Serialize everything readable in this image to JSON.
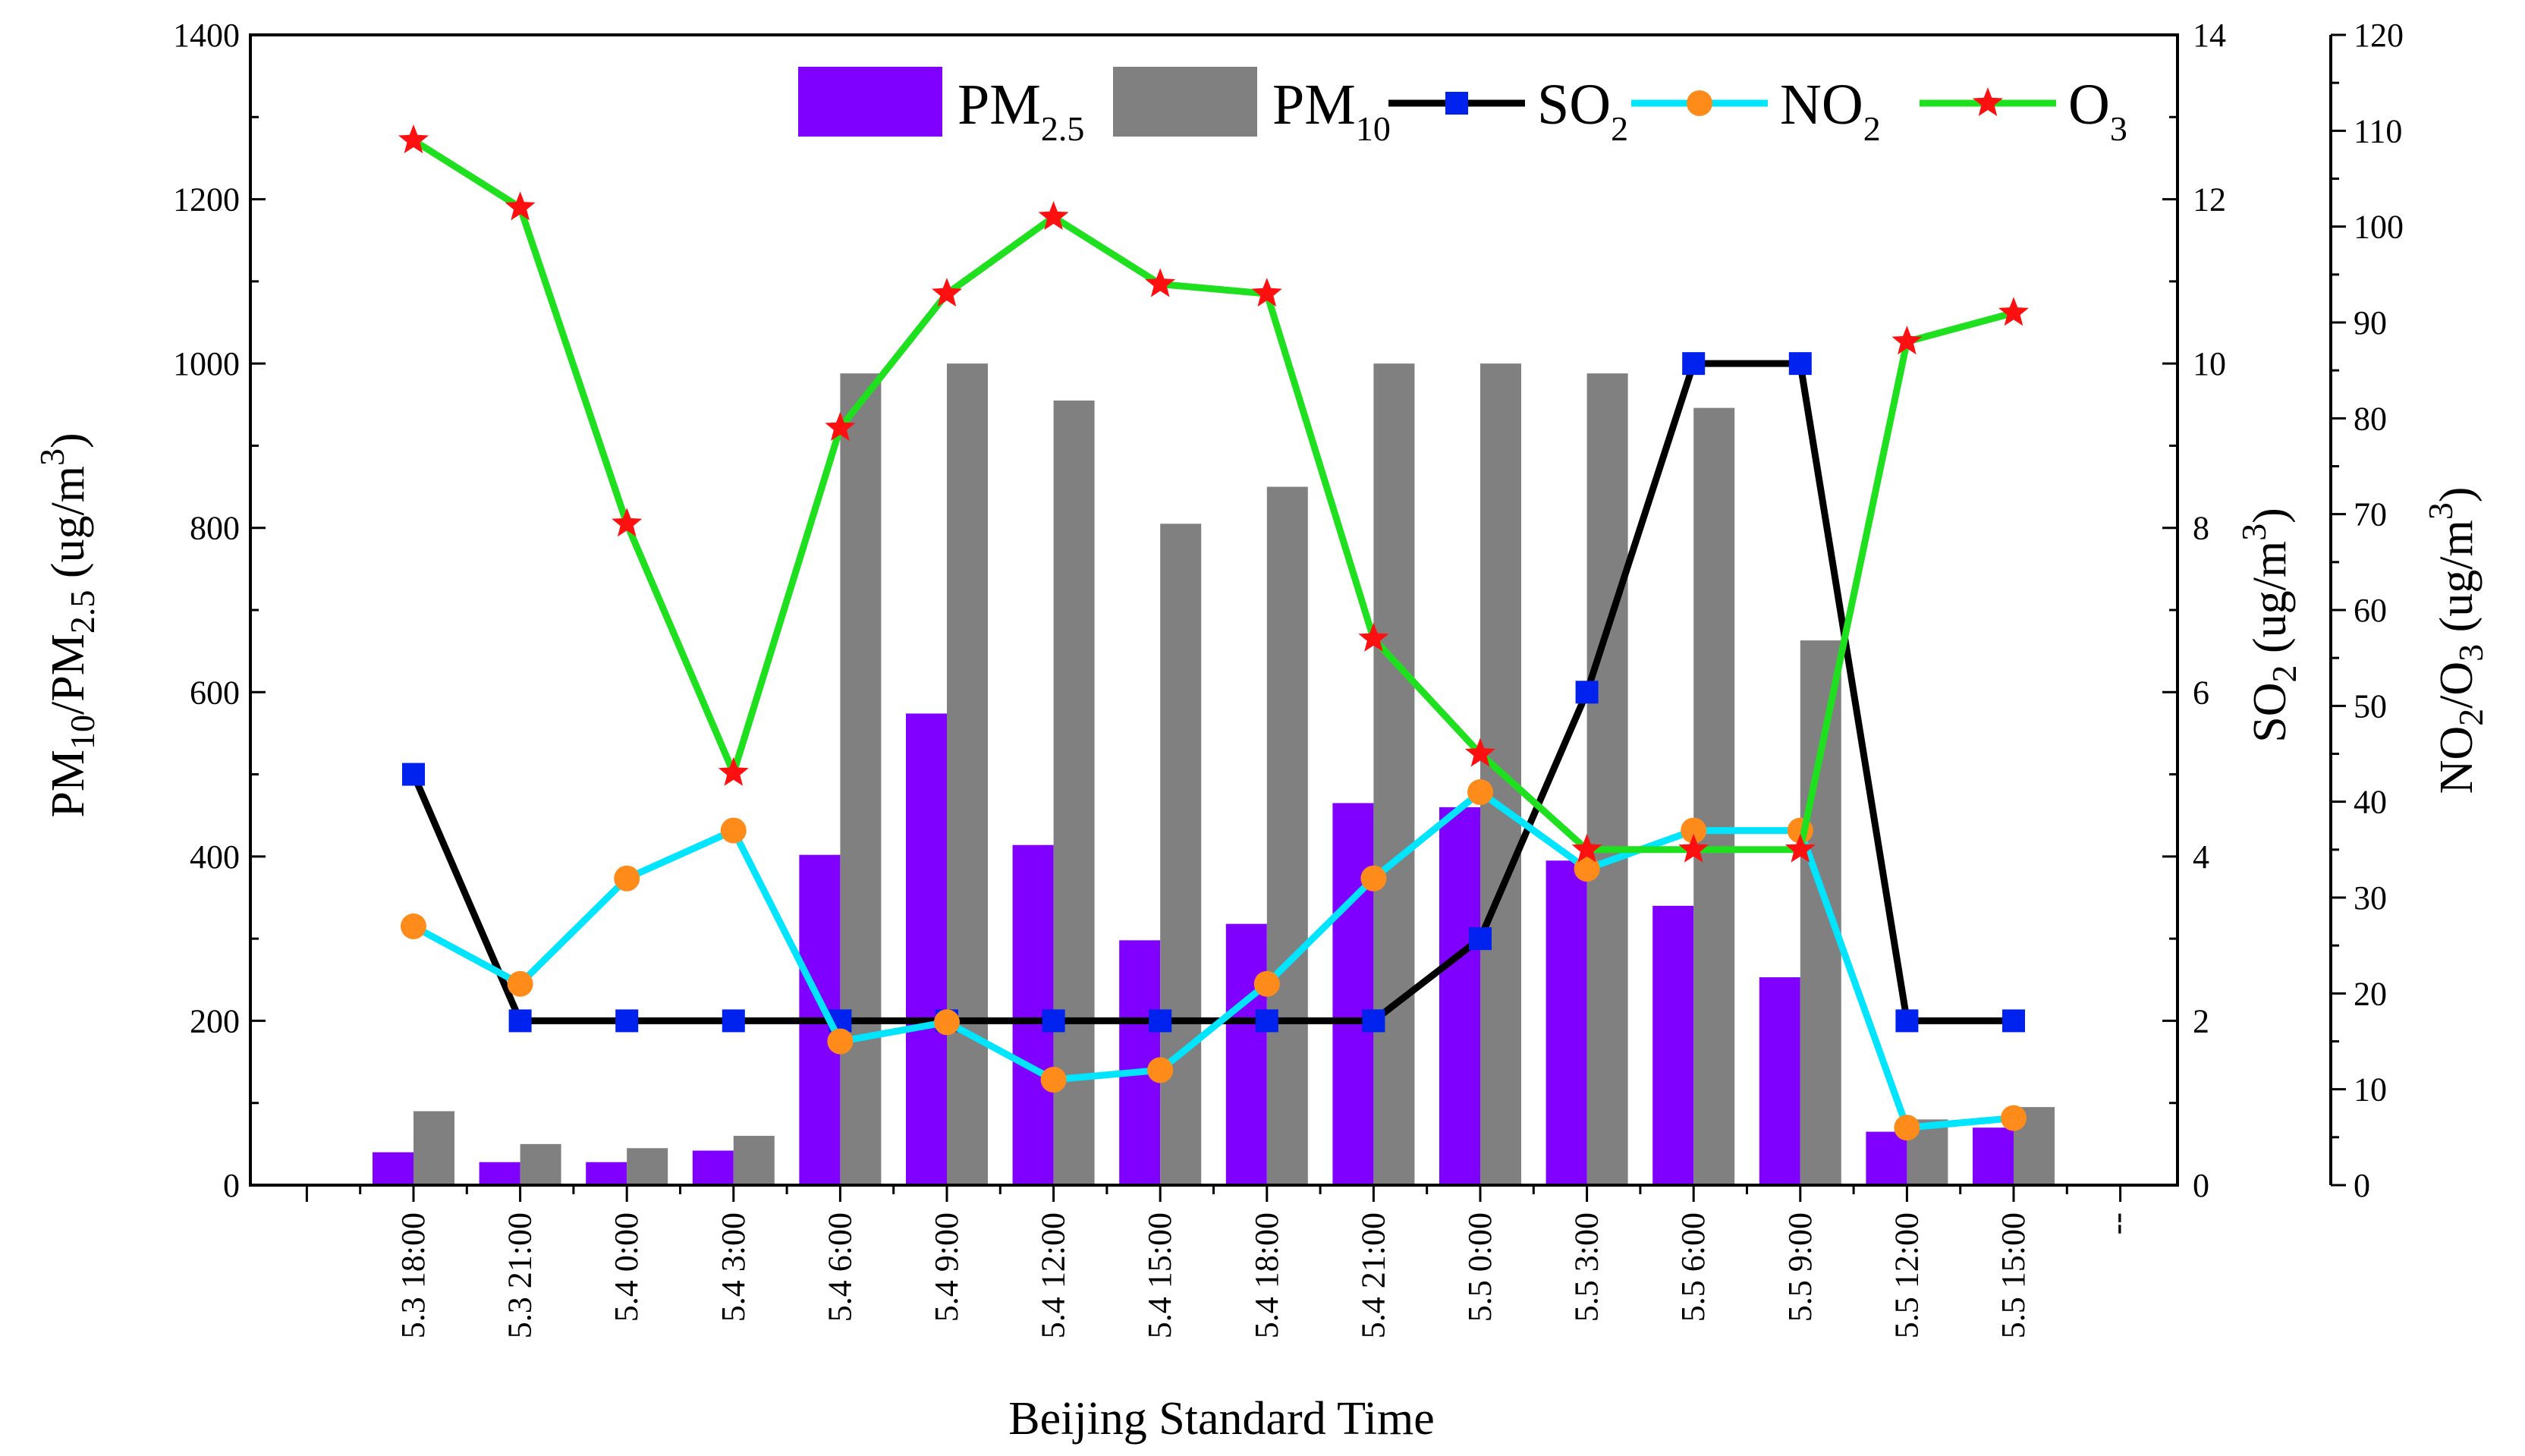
{
  "chart_data": {
    "type": "bar+line",
    "x_axis": {
      "title": "Beijing Standard Time",
      "categories": [
        "5.3 18:00",
        "5.3 21:00",
        "5.4  0:00",
        "5.4  3:00",
        "5.4  6:00",
        "5.4  9:00",
        "5.4 12:00",
        "5.4 15:00",
        "5.4 18:00",
        "5.4 21:00",
        "5.5  0:00",
        "5.5  3:00",
        "5.5  6:00",
        "5.5  9:00",
        "5.5 12:00",
        "5.5 15:00"
      ],
      "trailing_tick_label": "--"
    },
    "y_axes": [
      {
        "id": "pm",
        "side": "left",
        "title_main": "PM",
        "title_sub1": "10",
        "title_mid": "/PM",
        "title_sub2": "2.5",
        "title_unit": " (ug/m",
        "title_sup": "3",
        "title_close": ")",
        "range": [
          0,
          1400
        ],
        "ticks": [
          "0",
          "200",
          "400",
          "600",
          "800",
          "1000",
          "1200",
          "1400"
        ]
      },
      {
        "id": "so2",
        "side": "right",
        "title_main": "SO",
        "title_sub": "2",
        "title_unit": " (ug/m",
        "title_sup": "3",
        "title_close": ")",
        "range": [
          0,
          14
        ],
        "ticks": [
          "0",
          "2",
          "4",
          "6",
          "8",
          "10",
          "12",
          "14"
        ]
      },
      {
        "id": "no2o3",
        "side": "right-outer",
        "title_main": "NO",
        "title_sub1": "2",
        "title_mid": "/O",
        "title_sub2": "3",
        "title_unit": " (ug/m",
        "title_sup": "3",
        "title_close": ")",
        "range": [
          0,
          120
        ],
        "ticks": [
          "0",
          "10",
          "20",
          "30",
          "40",
          "50",
          "60",
          "70",
          "80",
          "90",
          "100",
          "110",
          "120"
        ]
      }
    ],
    "series": [
      {
        "id": "pm25",
        "type": "bar",
        "axis": "pm",
        "label_main": "PM",
        "label_sub": "2.5",
        "color": "#7f00ff",
        "values": [
          40,
          28,
          28,
          42,
          402,
          574,
          414,
          298,
          318,
          465,
          460,
          395,
          340,
          253,
          65,
          70
        ]
      },
      {
        "id": "pm10",
        "type": "bar",
        "axis": "pm",
        "label_main": "PM",
        "label_sub": "10",
        "color": "#808080",
        "values": [
          90,
          50,
          45,
          60,
          988,
          1000,
          955,
          805,
          850,
          1000,
          1000,
          988,
          946,
          663,
          80,
          95
        ]
      },
      {
        "id": "so2",
        "type": "line",
        "axis": "so2",
        "label_main": "SO",
        "label_sub": "2",
        "color": "#000000",
        "marker": "square",
        "marker_color": "#0022ee",
        "values": [
          5.0,
          2.0,
          2.0,
          2.0,
          2.0,
          2.0,
          2.0,
          2.0,
          2.0,
          2.0,
          3.0,
          6.0,
          10.0,
          10.0,
          2.0,
          2.0
        ]
      },
      {
        "id": "no2",
        "type": "line",
        "axis": "no2o3",
        "label_main": "NO",
        "label_sub": "2",
        "color": "#00e5ff",
        "marker": "circle",
        "marker_color": "#ff8c1a",
        "values": [
          27,
          21,
          32,
          37,
          15,
          17,
          11,
          12,
          21,
          32,
          41,
          33,
          37,
          37,
          6,
          7
        ]
      },
      {
        "id": "o3",
        "type": "line",
        "axis": "no2o3",
        "label_main": "O",
        "label_sub": "3",
        "color": "#1fe01f",
        "marker": "star",
        "marker_color": "#ff1010",
        "values": [
          109,
          102,
          69,
          43,
          79,
          93,
          101,
          94,
          93,
          57,
          45,
          35,
          35,
          35,
          88,
          91
        ]
      }
    ]
  }
}
